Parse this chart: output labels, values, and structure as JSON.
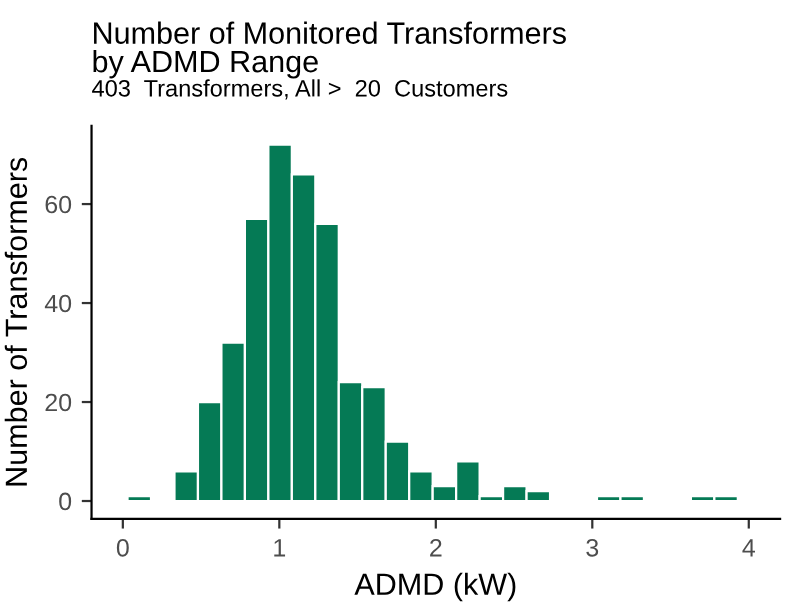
{
  "chart_data": {
    "type": "histogram",
    "title": "Number of Monitored Transformers\nby ADMD Range",
    "subtitle": "403  Transformers, All >  20  Customers",
    "xlabel": "ADMD (kW)",
    "ylabel": "Number of Transformers",
    "bins": [
      0.03,
      0.18,
      0.33,
      0.48,
      0.63,
      0.78,
      0.93,
      1.08,
      1.23,
      1.38,
      1.53,
      1.68,
      1.83,
      1.98,
      2.13,
      2.28,
      2.43,
      2.58,
      2.73,
      2.88,
      3.03,
      3.18,
      3.33,
      3.48,
      3.63,
      3.78,
      3.93
    ],
    "values": [
      1,
      0,
      6,
      20,
      32,
      57,
      72,
      66,
      56,
      24,
      23,
      12,
      6,
      3,
      8,
      1,
      3,
      2,
      0,
      0,
      1,
      1,
      0,
      0,
      1,
      1
    ],
    "color": "#057a55",
    "xlim": [
      -0.2,
      4.2
    ],
    "xticks": [
      0,
      1,
      2,
      3,
      4
    ],
    "ylim": [
      -3.6,
      75.8
    ],
    "yticks": [
      0,
      20,
      40,
      60
    ],
    "grid": false
  }
}
